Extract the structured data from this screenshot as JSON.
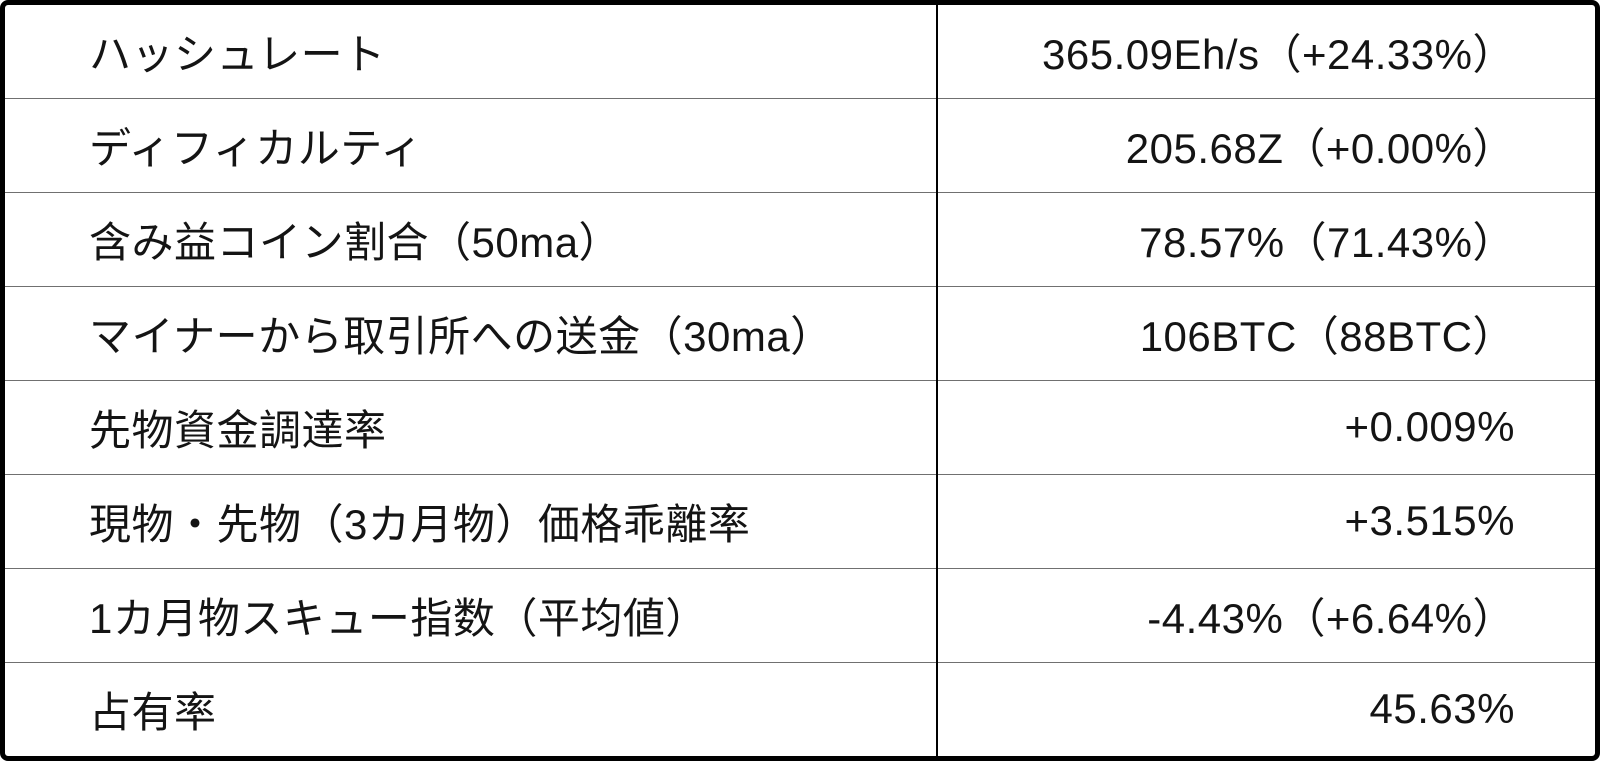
{
  "style": {
    "background": "#ffffff",
    "outer_border_color": "#000000",
    "column_divider_color": "#000000",
    "row_separator_color": "#707070",
    "text_color": "#141414"
  },
  "chart_data": {
    "type": "table",
    "grid": true,
    "header_row": false,
    "rows": [
      {
        "label": "ハッシュレート",
        "value": "365.09Eh/s（+24.33%）",
        "value_main": "365.09Eh/s",
        "value_paren": "+24.33%"
      },
      {
        "label": "ディフィカルティ",
        "value": "205.68Z（+0.00%）",
        "value_main": "205.68Z",
        "value_paren": "+0.00%"
      },
      {
        "label": "含み益コイン割合（50ma）",
        "value": "78.57%（71.43%）",
        "value_main": "78.57%",
        "value_paren": "71.43%"
      },
      {
        "label": "マイナーから取引所への送金（30ma）",
        "value": "106BTC（88BTC）",
        "value_main": "106BTC",
        "value_paren": "88BTC"
      },
      {
        "label": "先物資金調達率",
        "value": "+0.009%",
        "value_main": "+0.009%",
        "value_paren": ""
      },
      {
        "label": "現物・先物（3カ月物）価格乖離率",
        "value": "+3.515%",
        "value_main": "+3.515%",
        "value_paren": ""
      },
      {
        "label": "1カ月物スキュー指数（平均値）",
        "value": "-4.43%（+6.64%）",
        "value_main": "-4.43%",
        "value_paren": "+6.64%"
      },
      {
        "label": "占有率",
        "value": "45.63%",
        "value_main": "45.63%",
        "value_paren": ""
      }
    ]
  }
}
